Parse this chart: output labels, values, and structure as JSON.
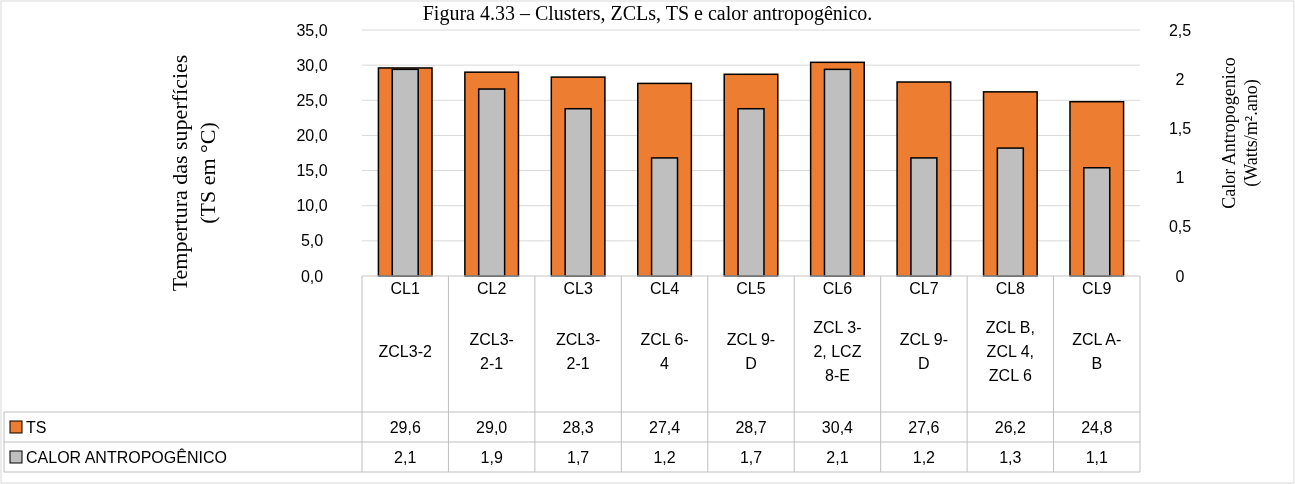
{
  "chart_data": {
    "type": "bar",
    "title": "Figura 4.33 – Clusters, ZCLs, TS e calor antropogênico.",
    "ylabel": "Tempertura das superfícies\n(TS em °C)",
    "y2label": "Calor Antropogenico\n(Watts/m².ano)",
    "categories": [
      "CL1\nZCL3-2",
      "CL2\nZCL3-\n2-1",
      "CL3\nZCL3-\n2-1",
      "CL4\nZCL 6-\n4",
      "CL5\nZCL 9-\nD",
      "CL6\nZCL 3-\n2, LCZ\n8-E",
      "CL7\nZCL 9-\nD",
      "CL8\nZCL B,\nZCL 4,\nZCL 6",
      "CL9\nZCL A-\nB"
    ],
    "series": [
      {
        "name": "TS",
        "color": "#ed7d31",
        "values": [
          29.6,
          29.0,
          28.3,
          27.4,
          28.7,
          30.4,
          27.6,
          26.2,
          24.8
        ],
        "value_labels": [
          "29,6",
          "29,0",
          "28,3",
          "27,4",
          "28,7",
          "30,4",
          "27,6",
          "26,2",
          "24,8"
        ]
      },
      {
        "name": "CALOR ANTROPOGÊNICO",
        "color": "#bfbfbf",
        "axis": "y2",
        "values": [
          2.1,
          1.9,
          1.7,
          1.2,
          1.7,
          2.1,
          1.2,
          1.3,
          1.1
        ],
        "value_labels": [
          "2,1",
          "1,9",
          "1,7",
          "1,2",
          "1,7",
          "2,1",
          "1,2",
          "1,3",
          "1,1"
        ]
      }
    ],
    "ylim": [
      0,
      35
    ],
    "yticks": [
      {
        "value": 0,
        "label": "0,0"
      },
      {
        "value": 5,
        "label": "5,0"
      },
      {
        "value": 10,
        "label": "10,0"
      },
      {
        "value": 15,
        "label": "15,0"
      },
      {
        "value": 20,
        "label": "20,0"
      },
      {
        "value": 25,
        "label": "25,0"
      },
      {
        "value": 30,
        "label": "30,0"
      },
      {
        "value": 35,
        "label": "35,0"
      }
    ],
    "y2lim": [
      0,
      2.5
    ],
    "y2ticks": [
      0,
      {
        "value": 0.5,
        "label": "0,5"
      },
      1,
      {
        "value": 1.5,
        "label": "1,5"
      },
      2,
      {
        "value": 2.5,
        "label": "2,5"
      }
    ],
    "grid": "y",
    "legend": "bottom"
  }
}
